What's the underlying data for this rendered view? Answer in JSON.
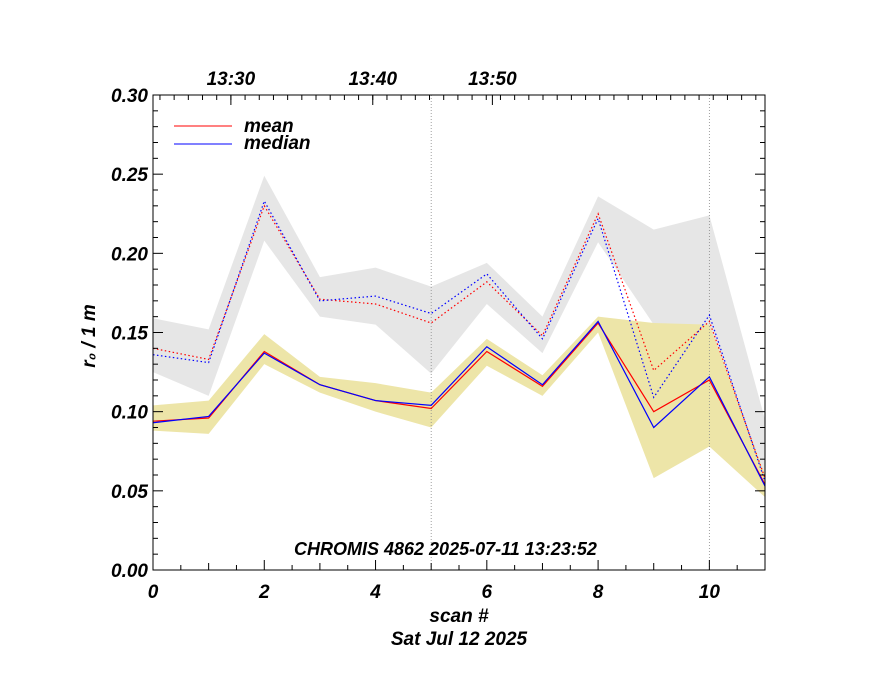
{
  "chart_data": {
    "type": "line",
    "title": "",
    "annotation": "CHROMIS 4862 2025-07-11 13:23:52",
    "xlabel": "scan #",
    "xlabel2": "Sat Jul 12 2025",
    "ylabel": "r₀ / 1 m",
    "xlim": [
      0,
      11
    ],
    "ylim": [
      0,
      0.3
    ],
    "x_ticks": [
      0,
      2,
      4,
      6,
      8,
      10
    ],
    "x_tick_labels": [
      "0",
      "2",
      "4",
      "6",
      "8",
      "10"
    ],
    "y_ticks": [
      0,
      0.05,
      0.1,
      0.15,
      0.2,
      0.25,
      0.3
    ],
    "y_tick_labels": [
      "0.00",
      "0.05",
      "0.10",
      "0.15",
      "0.20",
      "0.25",
      "0.30"
    ],
    "top_axis": {
      "labels": [
        "13:30",
        "13:40",
        "13:50"
      ],
      "positions": [
        1.4,
        3.95,
        6.1
      ]
    },
    "vertical_markers": [
      5,
      10
    ],
    "x": [
      0,
      1,
      2,
      3,
      4,
      5,
      6,
      7,
      8,
      9,
      10,
      11
    ],
    "series": [
      {
        "name": "mean",
        "color": "#ff0000",
        "style": "solid",
        "values": [
          0.094,
          0.096,
          0.138,
          0.117,
          0.107,
          0.102,
          0.138,
          0.116,
          0.156,
          0.1,
          0.12,
          0.054
        ]
      },
      {
        "name": "median",
        "color": "#0000ff",
        "style": "solid",
        "values": [
          0.093,
          0.097,
          0.137,
          0.117,
          0.107,
          0.104,
          0.141,
          0.117,
          0.157,
          0.09,
          0.122,
          0.053
        ]
      },
      {
        "name": "mean (upper)",
        "color": "#ff0000",
        "style": "dotted",
        "values": [
          0.14,
          0.133,
          0.23,
          0.171,
          0.168,
          0.156,
          0.182,
          0.148,
          0.225,
          0.126,
          0.157,
          0.058
        ]
      },
      {
        "name": "median (upper)",
        "color": "#0000ff",
        "style": "dotted",
        "values": [
          0.136,
          0.131,
          0.233,
          0.17,
          0.173,
          0.162,
          0.187,
          0.146,
          0.222,
          0.109,
          0.161,
          0.056
        ]
      }
    ],
    "bands": [
      {
        "name": "upper range",
        "color": "#e6e6e6",
        "upper": [
          0.159,
          0.152,
          0.249,
          0.185,
          0.191,
          0.179,
          0.194,
          0.16,
          0.236,
          0.215,
          0.224,
          0.095
        ],
        "lower": [
          0.125,
          0.11,
          0.208,
          0.16,
          0.155,
          0.124,
          0.168,
          0.137,
          0.207,
          0.155,
          0.153,
          0.05
        ]
      },
      {
        "name": "lower range",
        "color": "#ede5a8",
        "upper": [
          0.104,
          0.107,
          0.149,
          0.122,
          0.118,
          0.112,
          0.146,
          0.123,
          0.16,
          0.156,
          0.155,
          0.06
        ],
        "lower": [
          0.088,
          0.086,
          0.13,
          0.112,
          0.1,
          0.09,
          0.129,
          0.11,
          0.15,
          0.058,
          0.078,
          0.046
        ]
      }
    ],
    "legend": [
      {
        "label": "mean",
        "color": "#ff0000"
      },
      {
        "label": "median",
        "color": "#0000ff"
      }
    ],
    "legend_position": "top-left"
  }
}
